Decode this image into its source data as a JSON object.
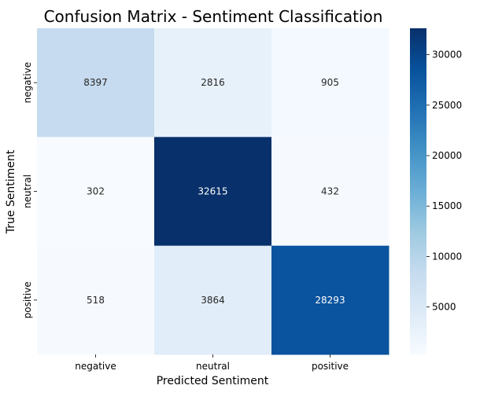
{
  "chart_data": {
    "type": "heatmap",
    "title": "Confusion Matrix - Sentiment Classification",
    "xlabel": "Predicted Sentiment",
    "ylabel": "True Sentiment",
    "x_categories": [
      "negative",
      "neutral",
      "positive"
    ],
    "y_categories": [
      "negative",
      "neutral",
      "positive"
    ],
    "values": [
      [
        8397,
        2816,
        905
      ],
      [
        302,
        32615,
        432
      ],
      [
        518,
        3864,
        28293
      ]
    ],
    "colormap": "Blues",
    "colorbar": {
      "range": [
        302,
        32615
      ],
      "ticks": [
        5000,
        10000,
        15000,
        20000,
        25000,
        30000
      ]
    },
    "grid": false
  }
}
